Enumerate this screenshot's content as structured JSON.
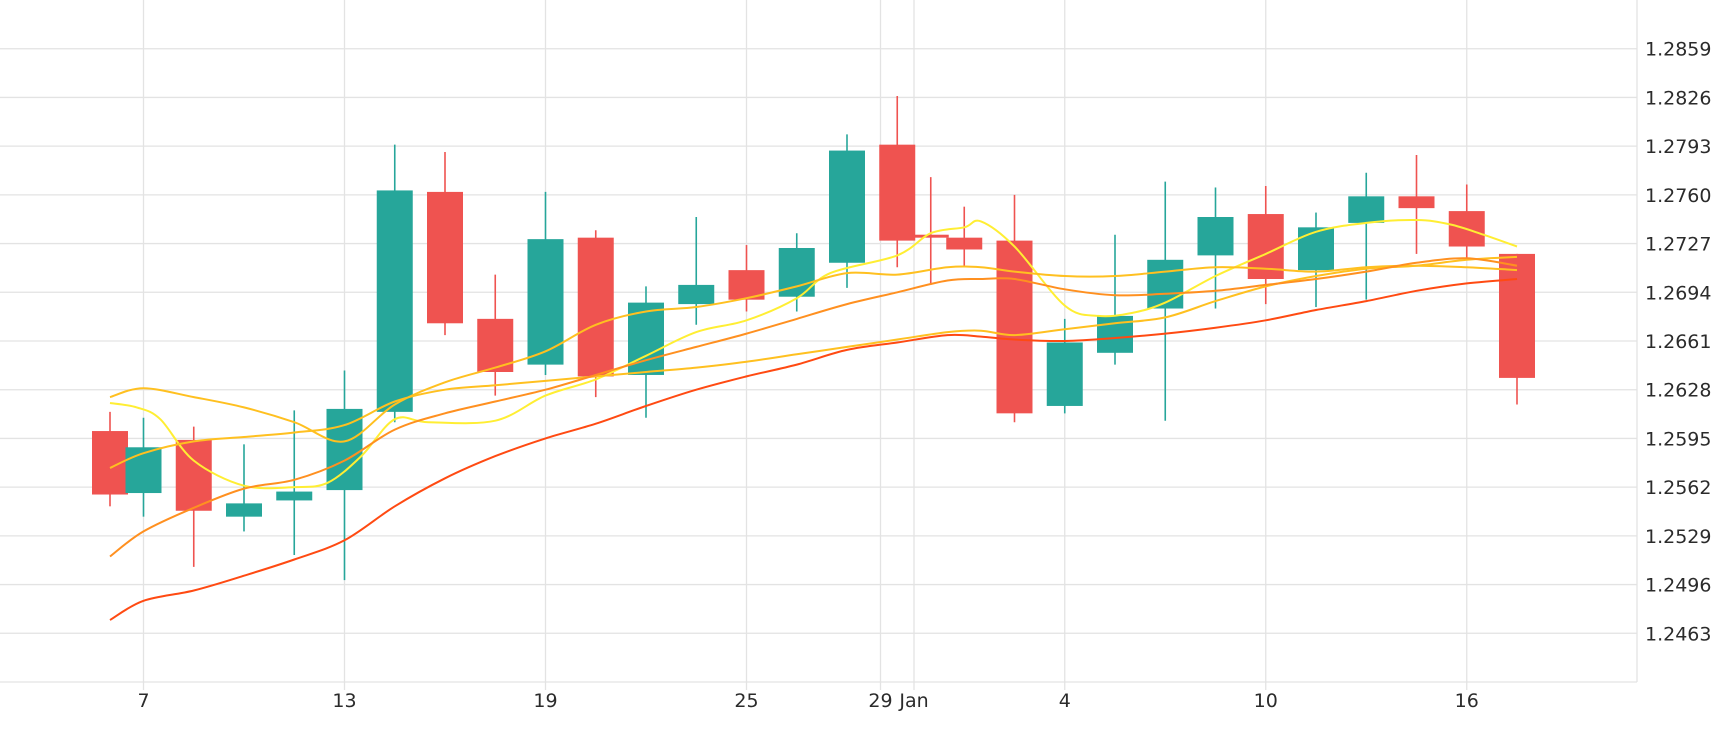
{
  "chart_data": {
    "type": "candlestick",
    "title": "",
    "xlabel": "",
    "ylabel": "",
    "y_ticks": [
      "1.2859",
      "1.2826",
      "1.2793",
      "1.2760",
      "1.2727",
      "1.2694",
      "1.2661",
      "1.2628",
      "1.2595",
      "1.2562",
      "1.2529",
      "1.2496",
      "1.2463"
    ],
    "ylim": [
      1.243,
      1.2892
    ],
    "grid": true,
    "x_ticks": [
      {
        "label": "7",
        "day": 7
      },
      {
        "label": "13",
        "day": 13
      },
      {
        "label": "19",
        "day": 19
      },
      {
        "label": "25",
        "day": 25
      },
      {
        "label": "29",
        "day": 29
      },
      {
        "label": "Jan",
        "day": 30
      },
      {
        "label": "4",
        "day": 34.5
      },
      {
        "label": "10",
        "day": 40.5
      },
      {
        "label": "16",
        "day": 46.5
      }
    ],
    "colors": {
      "up": "#26a69a",
      "down": "#ef5350",
      "grid": "#e3e3e3",
      "ma_fast": "#ffee33",
      "ma_2": "#ffc020",
      "ma_3": "#ff9020",
      "ma_slow": "#ff4a12"
    },
    "candles": [
      {
        "day": 6,
        "open": 1.26,
        "high": 1.2613,
        "low": 1.2549,
        "close": 1.2557
      },
      {
        "day": 7,
        "open": 1.2558,
        "high": 1.2609,
        "low": 1.2542,
        "close": 1.2589
      },
      {
        "day": 8.5,
        "open": 1.2594,
        "high": 1.2603,
        "low": 1.2508,
        "close": 1.2546
      },
      {
        "day": 10,
        "open": 1.2542,
        "high": 1.2591,
        "low": 1.2532,
        "close": 1.2551
      },
      {
        "day": 11.5,
        "open": 1.2553,
        "high": 1.2614,
        "low": 1.2516,
        "close": 1.2559
      },
      {
        "day": 13,
        "open": 1.256,
        "high": 1.2641,
        "low": 1.2499,
        "close": 1.2615
      },
      {
        "day": 14.5,
        "open": 1.2613,
        "high": 1.2794,
        "low": 1.2606,
        "close": 1.2763
      },
      {
        "day": 16,
        "open": 1.2762,
        "high": 1.2789,
        "low": 1.2665,
        "close": 1.2673
      },
      {
        "day": 17.5,
        "open": 1.2676,
        "high": 1.2706,
        "low": 1.2624,
        "close": 1.264
      },
      {
        "day": 19,
        "open": 1.2645,
        "high": 1.2762,
        "low": 1.2638,
        "close": 1.273
      },
      {
        "day": 20.5,
        "open": 1.2731,
        "high": 1.2736,
        "low": 1.2623,
        "close": 1.2637
      },
      {
        "day": 22,
        "open": 1.2638,
        "high": 1.2698,
        "low": 1.2609,
        "close": 1.2687
      },
      {
        "day": 23.5,
        "open": 1.2686,
        "high": 1.2745,
        "low": 1.2672,
        "close": 1.2699
      },
      {
        "day": 25,
        "open": 1.2709,
        "high": 1.2726,
        "low": 1.2681,
        "close": 1.2689
      },
      {
        "day": 26.5,
        "open": 1.2691,
        "high": 1.2734,
        "low": 1.2681,
        "close": 1.2724
      },
      {
        "day": 28,
        "open": 1.2714,
        "high": 1.2801,
        "low": 1.2697,
        "close": 1.279
      },
      {
        "day": 29.5,
        "open": 1.2794,
        "high": 1.2827,
        "low": 1.2711,
        "close": 1.2729
      },
      {
        "day": 30.5,
        "open": 1.2733,
        "high": 1.2772,
        "low": 1.2699,
        "close": 1.2731
      },
      {
        "day": 31.5,
        "open": 1.2731,
        "high": 1.2752,
        "low": 1.2712,
        "close": 1.2723
      },
      {
        "day": 33,
        "open": 1.2729,
        "high": 1.276,
        "low": 1.2606,
        "close": 1.2612
      },
      {
        "day": 34.5,
        "open": 1.2617,
        "high": 1.2676,
        "low": 1.2612,
        "close": 1.266
      },
      {
        "day": 36,
        "open": 1.2653,
        "high": 1.2733,
        "low": 1.2645,
        "close": 1.2678
      },
      {
        "day": 37.5,
        "open": 1.2683,
        "high": 1.2769,
        "low": 1.2607,
        "close": 1.2716
      },
      {
        "day": 39,
        "open": 1.2719,
        "high": 1.2765,
        "low": 1.2683,
        "close": 1.2745
      },
      {
        "day": 40.5,
        "open": 1.2747,
        "high": 1.2766,
        "low": 1.2686,
        "close": 1.2703
      },
      {
        "day": 42,
        "open": 1.2709,
        "high": 1.2748,
        "low": 1.2684,
        "close": 1.2738
      },
      {
        "day": 43.5,
        "open": 1.2741,
        "high": 1.2775,
        "low": 1.2689,
        "close": 1.2759
      },
      {
        "day": 45,
        "open": 1.2759,
        "high": 1.2787,
        "low": 1.272,
        "close": 1.2751
      },
      {
        "day": 46.5,
        "open": 1.2749,
        "high": 1.2767,
        "low": 1.2717,
        "close": 1.2725
      },
      {
        "day": 48,
        "open": 1.272,
        "high": 1.272,
        "low": 1.2618,
        "close": 1.2636
      }
    ],
    "series": [
      {
        "key": "ma_fast",
        "x": [
          6,
          6.8,
          7.5,
          8.5,
          10,
          11.5,
          12.5,
          13.5,
          14.5,
          15.5,
          17.5,
          19,
          20.5,
          22,
          23.5,
          25,
          26.5,
          27.5,
          29.5,
          30.5,
          31.5,
          32,
          33,
          34.5,
          35.5,
          36.5,
          37.5,
          39,
          40.5,
          42,
          43.5,
          45,
          46,
          47,
          48
        ],
        "y": [
          1.2619,
          1.2616,
          1.2608,
          1.258,
          1.2563,
          1.2562,
          1.2565,
          1.2583,
          1.2608,
          1.2606,
          1.2607,
          1.2624,
          1.2635,
          1.2651,
          1.2667,
          1.2675,
          1.269,
          1.2707,
          1.2719,
          1.2734,
          1.2738,
          1.2742,
          1.2725,
          1.2685,
          1.2678,
          1.268,
          1.2687,
          1.2705,
          1.272,
          1.2735,
          1.2741,
          1.2743,
          1.274,
          1.2733,
          1.2725
        ]
      },
      {
        "key": "ma_2",
        "x": [
          6,
          7,
          8.5,
          10,
          11.5,
          13,
          14.5,
          16,
          17.5,
          19,
          20.5,
          22,
          23.5,
          25,
          26.5,
          28,
          29.5,
          31,
          32,
          33,
          34.5,
          36,
          37.5,
          39,
          40.5,
          42,
          43.5,
          45,
          46.5,
          48
        ],
        "y": [
          1.2623,
          1.2629,
          1.2623,
          1.2616,
          1.2606,
          1.2593,
          1.2618,
          1.2633,
          1.2643,
          1.2654,
          1.2672,
          1.2681,
          1.2684,
          1.269,
          1.2698,
          1.2707,
          1.2706,
          1.2711,
          1.2711,
          1.2708,
          1.2705,
          1.2705,
          1.2708,
          1.2711,
          1.271,
          1.2708,
          1.2711,
          1.2712,
          1.2711,
          1.2709
        ]
      },
      {
        "key": "ma_3",
        "x": [
          6,
          7,
          8.5,
          10,
          11.5,
          13,
          14.5,
          16,
          17.5,
          19,
          20.5,
          22,
          23.5,
          25,
          26.5,
          28,
          29.5,
          31,
          32,
          33,
          34.5,
          36,
          37.5,
          39,
          40.5,
          42,
          43.5,
          45,
          46.5,
          48
        ],
        "y": [
          1.2575,
          1.2585,
          1.2593,
          1.2596,
          1.2599,
          1.2604,
          1.262,
          1.2628,
          1.2631,
          1.2634,
          1.2637,
          1.264,
          1.2643,
          1.2647,
          1.2652,
          1.2657,
          1.2662,
          1.2667,
          1.2668,
          1.2665,
          1.2669,
          1.2673,
          1.2677,
          1.2688,
          1.2698,
          1.2705,
          1.271,
          1.2712,
          1.2716,
          1.2718
        ]
      },
      {
        "key": "ma_ochre",
        "x": [
          6,
          7,
          8.5,
          10,
          11.5,
          13,
          14.5,
          16,
          17.5,
          19,
          20.5,
          22,
          23.5,
          25,
          26.5,
          28,
          29.5,
          31,
          32,
          33,
          34.5,
          36,
          37.5,
          39,
          40.5,
          42,
          43.5,
          45,
          46.5,
          48
        ],
        "y": [
          1.2515,
          1.2532,
          1.2548,
          1.2561,
          1.2567,
          1.258,
          1.2601,
          1.2612,
          1.262,
          1.2628,
          1.2638,
          1.2648,
          1.2657,
          1.2666,
          1.2676,
          1.2686,
          1.2694,
          1.2702,
          1.2703,
          1.2703,
          1.2696,
          1.2692,
          1.2693,
          1.2695,
          1.2699,
          1.2703,
          1.2708,
          1.2714,
          1.2717,
          1.2712
        ]
      },
      {
        "key": "ma_slow",
        "x": [
          6,
          7,
          8.5,
          10,
          11.5,
          13,
          14.5,
          16,
          17.5,
          19,
          20.5,
          22,
          23.5,
          25,
          26.5,
          28,
          29.5,
          31,
          32,
          33,
          34.5,
          36,
          37.5,
          39,
          40.5,
          42,
          43.5,
          45,
          46.5,
          48
        ],
        "y": [
          1.2472,
          1.2485,
          1.2492,
          1.2502,
          1.2513,
          1.2526,
          1.2549,
          1.2568,
          1.2583,
          1.2595,
          1.2605,
          1.2617,
          1.2628,
          1.2637,
          1.2645,
          1.2655,
          1.266,
          1.2665,
          1.2664,
          1.2662,
          1.2661,
          1.2663,
          1.2666,
          1.267,
          1.2675,
          1.2682,
          1.2688,
          1.2695,
          1.27,
          1.2703
        ]
      }
    ]
  }
}
